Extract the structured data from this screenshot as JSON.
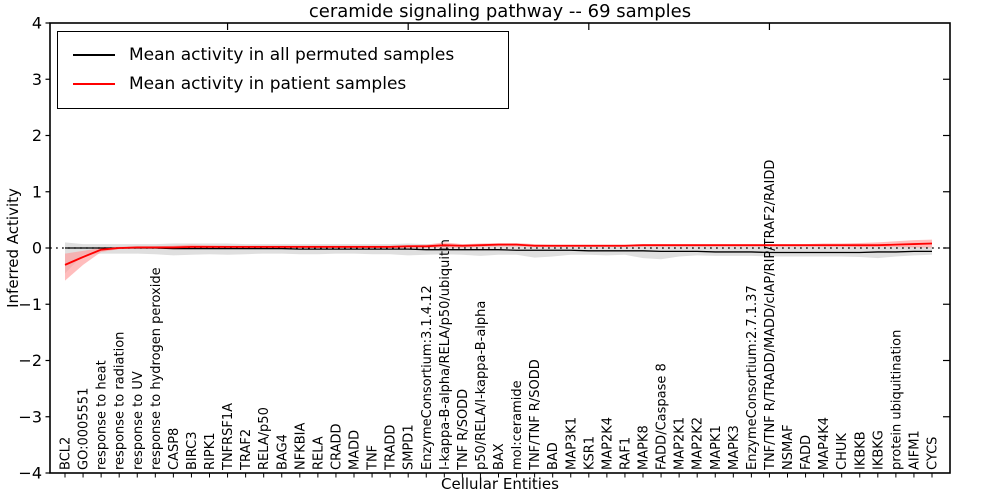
{
  "figure": {
    "background": "#ffffff"
  },
  "legend": [
    {
      "label": "Mean activity in all permuted samples",
      "color": "#000000"
    },
    {
      "label": "Mean activity in patient samples",
      "color": "#ff0000"
    }
  ],
  "chart_data": {
    "type": "line",
    "title": "ceramide signaling pathway -- 69 samples",
    "xlabel": "Cellular Entities",
    "ylabel": "Inferred Activity",
    "ylim": [
      -4,
      4
    ],
    "ytick_values": [
      4,
      3,
      2,
      1,
      0,
      -1,
      -2,
      -3,
      -4
    ],
    "ytick_labels": [
      "4",
      "3",
      "2",
      "1",
      "0",
      "−1",
      "−2",
      "−3",
      "−4"
    ],
    "grid": false,
    "legend_position": "upper left",
    "zero_line": {
      "value": 0,
      "style": "dotted",
      "color": "#000000"
    },
    "top_tick_indices": [
      9,
      19,
      29,
      39
    ],
    "categories": [
      "BCL2",
      "GO:0005551",
      "response to heat",
      "response to radiation",
      "response to UV",
      "response to hydrogen peroxide",
      "CASP8",
      "BIRC3",
      "RIPK1",
      "TNFRSF1A",
      "TRAF2",
      "RELA/p50",
      "BAG4",
      "NFKBIA",
      "RELA",
      "CRADD",
      "MADD",
      "TNF",
      "TRADD",
      "SMPD1",
      "EnzymeConsortium:3.1.4.12",
      "I-kappa-B-alpha/RELA/p50/ubiquitin",
      "TNF R/SODD",
      "p50/RELA/I-kappa-B-alpha",
      "BAX",
      "mol:ceramide",
      "TNF/TNF R/SODD",
      "BAD",
      "MAP3K1",
      "KSR1",
      "MAP2K4",
      "RAF1",
      "MAPK8",
      "FADD/Caspase 8",
      "MAP2K1",
      "MAP2K2",
      "MAPK1",
      "MAPK3",
      "EnzymeConsortium:2.7.1.37",
      "TNF/TNF R/TRADD/MADD/cIAP/RIP/TRAF2/RAIDD",
      "NSMAF",
      "FADD",
      "MAP4K4",
      "CHUK",
      "IKBKB",
      "IKBKG",
      "protein ubiquitination",
      "AIFM1",
      "CYCS"
    ],
    "series": [
      {
        "name": "Mean activity in all permuted samples",
        "color": "#000000",
        "line_width": 1.3,
        "band_color": "#d9d9d9",
        "band_opacity": 0.85,
        "values": [
          0,
          0,
          0,
          0,
          0,
          0,
          -0.01,
          -0.01,
          -0.01,
          -0.01,
          -0.01,
          -0.01,
          -0.01,
          -0.02,
          -0.02,
          -0.02,
          -0.02,
          -0.02,
          -0.02,
          -0.02,
          -0.03,
          -0.03,
          -0.03,
          -0.03,
          -0.03,
          -0.04,
          -0.04,
          -0.04,
          -0.04,
          -0.05,
          -0.05,
          -0.05,
          -0.05,
          -0.06,
          -0.06,
          -0.06,
          -0.07,
          -0.07,
          -0.07,
          -0.08,
          -0.08,
          -0.08,
          -0.08,
          -0.08,
          -0.08,
          -0.07,
          -0.07,
          -0.06,
          -0.06
        ],
        "band_upper": [
          0.1,
          0.07,
          0.07,
          0.07,
          0.07,
          0.07,
          0.08,
          0.08,
          0.08,
          0.08,
          0.07,
          0.07,
          0.07,
          0.07,
          0.07,
          0.07,
          0.07,
          0.07,
          0.07,
          0.08,
          0.07,
          0.06,
          0.06,
          0.06,
          0.06,
          0.05,
          0.05,
          0.05,
          0.05,
          0.05,
          0.04,
          0.04,
          0.04,
          0.04,
          0.04,
          0.04,
          0.03,
          0.03,
          0.03,
          0.03,
          0.03,
          0.03,
          0.03,
          0.03,
          0.03,
          0.03,
          0.03,
          0.03,
          0.02
        ],
        "band_lower": [
          -0.45,
          -0.12,
          -0.1,
          -0.1,
          -0.1,
          -0.11,
          -0.13,
          -0.12,
          -0.11,
          -0.12,
          -0.11,
          -0.1,
          -0.1,
          -0.11,
          -0.11,
          -0.1,
          -0.1,
          -0.11,
          -0.11,
          -0.13,
          -0.12,
          -0.11,
          -0.12,
          -0.14,
          -0.12,
          -0.12,
          -0.17,
          -0.15,
          -0.12,
          -0.12,
          -0.13,
          -0.12,
          -0.18,
          -0.2,
          -0.15,
          -0.13,
          -0.14,
          -0.14,
          -0.14,
          -0.15,
          -0.15,
          -0.15,
          -0.15,
          -0.15,
          -0.16,
          -0.18,
          -0.15,
          -0.13,
          -0.12
        ]
      },
      {
        "name": "Mean activity in patient samples",
        "color": "#ff0000",
        "line_width": 1.8,
        "band_color": "#ff9a9a",
        "band_opacity": 0.65,
        "values": [
          -0.3,
          -0.16,
          -0.03,
          0.0,
          0.01,
          0.01,
          0.01,
          0.02,
          0.02,
          0.02,
          0.02,
          0.02,
          0.02,
          0.02,
          0.02,
          0.02,
          0.02,
          0.02,
          0.02,
          0.03,
          0.03,
          0.05,
          0.04,
          0.05,
          0.06,
          0.06,
          0.04,
          0.04,
          0.04,
          0.04,
          0.04,
          0.04,
          0.05,
          0.05,
          0.05,
          0.05,
          0.05,
          0.05,
          0.05,
          0.05,
          0.05,
          0.05,
          0.05,
          0.05,
          0.05,
          0.05,
          0.06,
          0.07,
          0.08
        ],
        "band_upper": [
          -0.1,
          -0.05,
          0.0,
          0.02,
          0.03,
          0.03,
          0.04,
          0.06,
          0.05,
          0.04,
          0.04,
          0.04,
          0.04,
          0.04,
          0.04,
          0.04,
          0.04,
          0.04,
          0.04,
          0.05,
          0.06,
          0.1,
          0.07,
          0.08,
          0.09,
          0.09,
          0.07,
          0.06,
          0.06,
          0.06,
          0.06,
          0.06,
          0.07,
          0.07,
          0.07,
          0.07,
          0.07,
          0.07,
          0.07,
          0.07,
          0.07,
          0.07,
          0.08,
          0.08,
          0.09,
          0.1,
          0.12,
          0.14,
          0.15
        ],
        "band_lower": [
          -0.58,
          -0.3,
          -0.07,
          -0.02,
          -0.01,
          -0.01,
          -0.02,
          -0.02,
          -0.01,
          0.0,
          0.0,
          0.0,
          0.0,
          0.0,
          0.0,
          0.0,
          0.0,
          0.0,
          0.0,
          0.01,
          0.01,
          0.01,
          0.01,
          0.02,
          0.03,
          0.03,
          0.02,
          0.02,
          0.02,
          0.02,
          0.02,
          0.02,
          0.03,
          0.03,
          0.03,
          0.03,
          0.03,
          0.03,
          0.03,
          0.03,
          0.03,
          0.03,
          0.03,
          0.03,
          0.02,
          0.02,
          0.02,
          0.01,
          0.01
        ]
      }
    ]
  }
}
